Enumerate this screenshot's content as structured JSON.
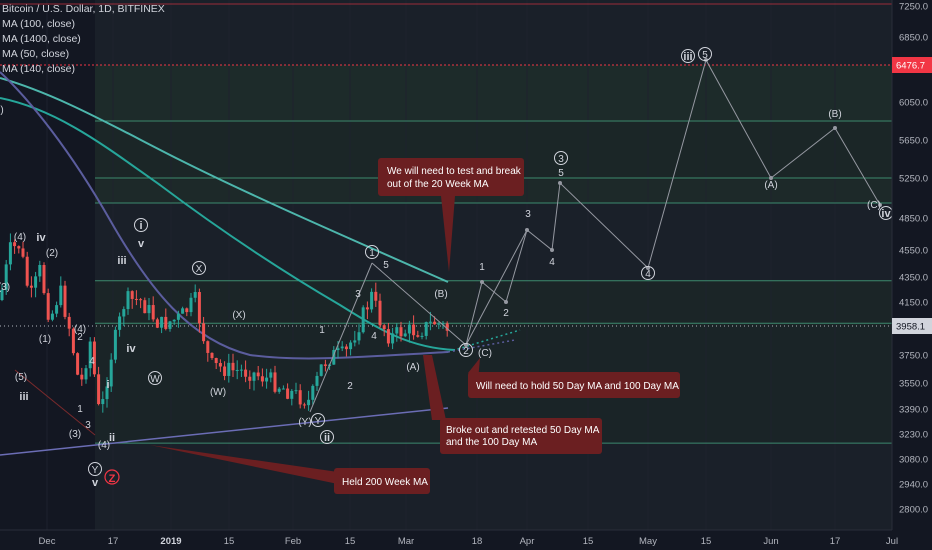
{
  "legend": {
    "symbol": "Bitcoin / U.S. Dollar, 1D, BITFINEX",
    "ma1": "MA (100, close)",
    "ma2": "MA (1400, close)",
    "ma3": "MA (50, close)",
    "ma4": "MA (140, close)"
  },
  "colors": {
    "background": "#131722",
    "up": "#26a69a",
    "down": "#ef5350",
    "ma100": "#4db6ac",
    "ma50": "#5b5d9e",
    "ma_long": "#6b6db5",
    "resistance": "#f23645",
    "current": "#b2b5be",
    "note_box": "#6b1f21",
    "band_green": "#26a69a",
    "wave_path": "#9598a1"
  },
  "chart_data": {
    "type": "candlestick",
    "title": "Bitcoin / U.S. Dollar, 1D, BITFINEX",
    "ylim": [
      2700,
      7300
    ],
    "y_ticks": [
      7250,
      6850,
      6476.7,
      6050,
      5650,
      5250,
      4850,
      4550,
      4350,
      4150,
      3958.1,
      3750,
      3550,
      3390,
      3230,
      3080,
      2940,
      2800
    ],
    "x_ticks": [
      "Dec",
      "17",
      "2019",
      "15",
      "Feb",
      "15",
      "Mar",
      "18",
      "Apr",
      "15",
      "May",
      "15",
      "Jun",
      "17",
      "Jul"
    ],
    "price_labels": {
      "resistance": "6476.7",
      "current": "3958.1"
    },
    "horizontal_levels": [
      6476.7,
      5850,
      5250,
      5000,
      4320,
      3980,
      3175
    ],
    "annotations": [
      "We will need to test  and break out of the 20 Week MA",
      "Will need to hold 50 Day MA and 100 Day MA",
      "Broke out and retested 50 Day MA and the 100 Day MA",
      "Held 200 Week MA"
    ],
    "wave_labels": [
      "iii",
      "5",
      "(B)",
      "(A)",
      "(C)",
      "iv",
      "3",
      "5",
      "4",
      "1",
      "2",
      "(B)",
      "(A)",
      "(C)",
      "2",
      "1",
      "(X)",
      "(Y)",
      "(W)",
      "ii",
      "i",
      "v",
      "Z",
      "Y"
    ]
  },
  "notes": {
    "n1a": "We will need to test  and break",
    "n1b": "out of the 20 Week MA",
    "n2": "Will need to hold 50 Day MA and 100 Day MA",
    "n3a": "Broke out and retested 50 Day MA",
    "n3b": "and the 100 Day MA",
    "n4": "Held 200 Week MA"
  }
}
